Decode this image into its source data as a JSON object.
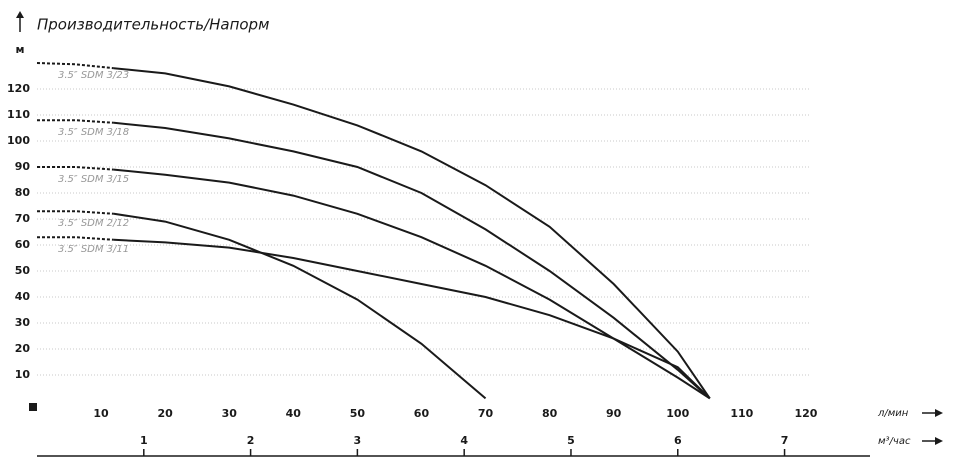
{
  "chart_data": {
    "type": "line",
    "title": "Производительность/Напорм",
    "y_label": "м",
    "x_label": "л/мин",
    "x2_label": "м³/час",
    "x": [
      0,
      6,
      12,
      20,
      30,
      40,
      50,
      60,
      70,
      80,
      90,
      100,
      105
    ],
    "dashed_x": [
      0,
      12
    ],
    "series": [
      {
        "name": "3.5″ SDM 3/23",
        "color": "#1a1a1a",
        "values": [
          130,
          129.5,
          128,
          126,
          121,
          114,
          106,
          96,
          83,
          67,
          45,
          19,
          1
        ]
      },
      {
        "name": "3.5″ SDM 3/18",
        "color": "#1a1a1a",
        "values": [
          108,
          108,
          107,
          105,
          101,
          96,
          90,
          80,
          66,
          50,
          32,
          12,
          1
        ]
      },
      {
        "name": "3.5″ SDM 3/15",
        "color": "#1a1a1a",
        "values": [
          90,
          90,
          89,
          87,
          84,
          79,
          72,
          63,
          52,
          39,
          24,
          9,
          1
        ]
      },
      {
        "name": "3.5″ SDM 2/12",
        "color": "#1a1a1a",
        "values": [
          73,
          73,
          72,
          69,
          62,
          52,
          39,
          22,
          1,
          null,
          null,
          null,
          null
        ]
      },
      {
        "name": "3.5″ SDM 3/11",
        "color": "#1a1a1a",
        "values": [
          63,
          63,
          62,
          61,
          59,
          55,
          50,
          45,
          40,
          33,
          24,
          13,
          1
        ]
      }
    ],
    "xlim": [
      0,
      130
    ],
    "xticks": [
      10,
      20,
      30,
      40,
      50,
      60,
      70,
      80,
      90,
      100,
      110,
      120
    ],
    "ylim": [
      0,
      130
    ],
    "yticks": [
      10,
      20,
      30,
      40,
      50,
      60,
      70,
      80,
      90,
      100,
      110,
      120
    ],
    "x2lim": [
      0,
      7.8
    ],
    "x2ticks": [
      1,
      2,
      3,
      4,
      5,
      6,
      7
    ],
    "grid": true
  }
}
